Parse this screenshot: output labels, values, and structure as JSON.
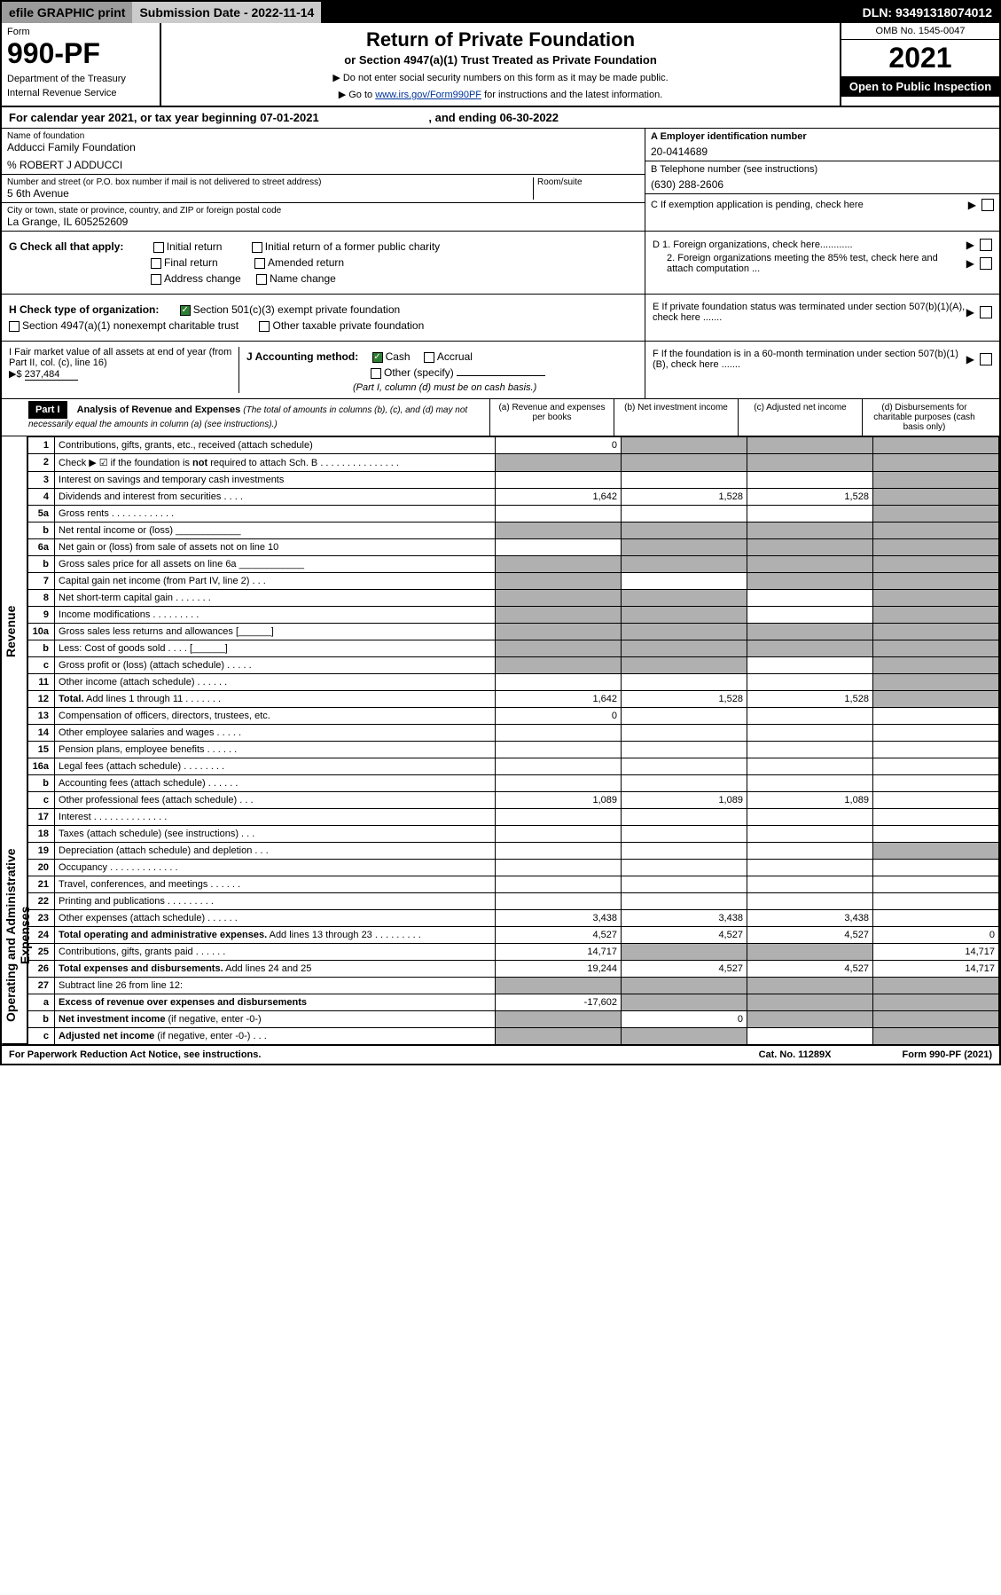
{
  "topbar": {
    "efile": "efile GRAPHIC print",
    "subdate_label": "Submission Date - 2022-11-14",
    "dln": "DLN: 93491318074012"
  },
  "header": {
    "form_label": "Form",
    "form_no": "990-PF",
    "dept": "Department of the Treasury",
    "irs": "Internal Revenue Service",
    "title": "Return of Private Foundation",
    "subtitle": "or Section 4947(a)(1) Trust Treated as Private Foundation",
    "note1": "▶ Do not enter social security numbers on this form as it may be made public.",
    "note2_pre": "▶ Go to ",
    "note2_link": "www.irs.gov/Form990PF",
    "note2_post": " for instructions and the latest information.",
    "omb": "OMB No. 1545-0047",
    "year": "2021",
    "open": "Open to Public Inspection"
  },
  "calyear": {
    "text": "For calendar year 2021, or tax year beginning 07-01-2021",
    "ending": ", and ending 06-30-2022"
  },
  "foundation": {
    "name_label": "Name of foundation",
    "name": "Adducci Family Foundation",
    "care_of": "% ROBERT J ADDUCCI",
    "addr_label": "Number and street (or P.O. box number if mail is not delivered to street address)",
    "room_label": "Room/suite",
    "addr": "5 6th Avenue",
    "city_label": "City or town, state or province, country, and ZIP or foreign postal code",
    "city": "La Grange, IL  605252609"
  },
  "right_info": {
    "a_label": "A Employer identification number",
    "a_val": "20-0414689",
    "b_label": "B Telephone number (see instructions)",
    "b_val": "(630) 288-2606",
    "c_label": "C If exemption application is pending, check here",
    "d1": "D 1. Foreign organizations, check here............",
    "d2": "2. Foreign organizations meeting the 85% test, check here and attach computation ...",
    "e": "E  If private foundation status was terminated under section 507(b)(1)(A), check here .......",
    "f": "F  If the foundation is in a 60-month termination under section 507(b)(1)(B), check here ......."
  },
  "checks_g": {
    "label": "G Check all that apply:",
    "opts": [
      "Initial return",
      "Initial return of a former public charity",
      "Final return",
      "Amended return",
      "Address change",
      "Name change"
    ]
  },
  "checks_h": {
    "label": "H Check type of organization:",
    "opt1": "Section 501(c)(3) exempt private foundation",
    "opt2": "Section 4947(a)(1) nonexempt charitable trust",
    "opt3": "Other taxable private foundation"
  },
  "section_i": {
    "label": "I Fair market value of all assets at end of year (from Part II, col. (c), line 16)",
    "arrow": "▶$",
    "value": "237,484"
  },
  "section_j": {
    "label": "J Accounting method:",
    "cash": "Cash",
    "accrual": "Accrual",
    "other": "Other (specify)",
    "note": "(Part I, column (d) must be on cash basis.)"
  },
  "part1": {
    "title": "Part I",
    "heading": "Analysis of Revenue and Expenses",
    "heading_note": "(The total of amounts in columns (b), (c), and (d) may not necessarily equal the amounts in column (a) (see instructions).)",
    "col_a": "(a)   Revenue and expenses per books",
    "col_b": "(b)   Net investment income",
    "col_c": "(c)   Adjusted net income",
    "col_d": "(d)   Disbursements for charitable purposes (cash basis only)"
  },
  "side": {
    "revenue": "Revenue",
    "expenses": "Operating and Administrative Expenses"
  },
  "rows": [
    {
      "n": "1",
      "desc": "Contributions, gifts, grants, etc., received (attach schedule)",
      "a": "0",
      "b_shade": true,
      "c_shade": true,
      "d_shade": true
    },
    {
      "n": "2",
      "desc": "Check ▶ ☑ if the foundation is <b>not</b> required to attach Sch. B   .   .   .   .   .   .   .   .   .   .   .   .   .   .   .",
      "a_shade": true,
      "b_shade": true,
      "c_shade": true,
      "d_shade": true
    },
    {
      "n": "3",
      "desc": "Interest on savings and temporary cash investments",
      "d_shade": true
    },
    {
      "n": "4",
      "desc": "Dividends and interest from securities   .   .   .   .",
      "a": "1,642",
      "b": "1,528",
      "c": "1,528",
      "d_shade": true
    },
    {
      "n": "5a",
      "desc": "Gross rents   .   .   .   .   .   .   .   .   .   .   .   .",
      "d_shade": true
    },
    {
      "n": "b",
      "desc": "Net rental income or (loss)  ____________",
      "a_shade": true,
      "b_shade": true,
      "c_shade": true,
      "d_shade": true
    },
    {
      "n": "6a",
      "desc": "Net gain or (loss) from sale of assets not on line 10",
      "b_shade": true,
      "c_shade": true,
      "d_shade": true
    },
    {
      "n": "b",
      "desc": "Gross sales price for all assets on line 6a ____________",
      "a_shade": true,
      "b_shade": true,
      "c_shade": true,
      "d_shade": true
    },
    {
      "n": "7",
      "desc": "Capital gain net income (from Part IV, line 2)   .   .   .",
      "a_shade": true,
      "c_shade": true,
      "d_shade": true
    },
    {
      "n": "8",
      "desc": "Net short-term capital gain   .   .   .   .   .   .   .",
      "a_shade": true,
      "b_shade": true,
      "d_shade": true
    },
    {
      "n": "9",
      "desc": "Income modifications   .   .   .   .   .   .   .   .   .",
      "a_shade": true,
      "b_shade": true,
      "d_shade": true
    },
    {
      "n": "10a",
      "desc": "Gross sales less returns and allowances  [______]",
      "a_shade": true,
      "b_shade": true,
      "c_shade": true,
      "d_shade": true
    },
    {
      "n": "b",
      "desc": "Less: Cost of goods sold   .   .   .   .   [______]",
      "a_shade": true,
      "b_shade": true,
      "c_shade": true,
      "d_shade": true
    },
    {
      "n": "c",
      "desc": "Gross profit or (loss) (attach schedule)   .   .   .   .   .",
      "a_shade": true,
      "b_shade": true,
      "d_shade": true
    },
    {
      "n": "11",
      "desc": "Other income (attach schedule)   .   .   .   .   .   .",
      "d_shade": true
    },
    {
      "n": "12",
      "desc": "<b>Total.</b> Add lines 1 through 11   .   .   .   .   .   .   .",
      "a": "1,642",
      "b": "1,528",
      "c": "1,528",
      "d_shade": true
    },
    {
      "n": "13",
      "desc": "Compensation of officers, directors, trustees, etc.",
      "a": "0"
    },
    {
      "n": "14",
      "desc": "Other employee salaries and wages   .   .   .   .   ."
    },
    {
      "n": "15",
      "desc": "Pension plans, employee benefits   .   .   .   .   .   ."
    },
    {
      "n": "16a",
      "desc": "Legal fees (attach schedule)   .   .   .   .   .   .   .   ."
    },
    {
      "n": "b",
      "desc": "Accounting fees (attach schedule)   .   .   .   .   .   ."
    },
    {
      "n": "c",
      "desc": "Other professional fees (attach schedule)   .   .   .",
      "a": "1,089",
      "b": "1,089",
      "c": "1,089"
    },
    {
      "n": "17",
      "desc": "Interest   .   .   .   .   .   .   .   .   .   .   .   .   .   ."
    },
    {
      "n": "18",
      "desc": "Taxes (attach schedule) (see instructions)   .   .   ."
    },
    {
      "n": "19",
      "desc": "Depreciation (attach schedule) and depletion   .   .   .",
      "d_shade": true
    },
    {
      "n": "20",
      "desc": "Occupancy   .   .   .   .   .   .   .   .   .   .   .   .   ."
    },
    {
      "n": "21",
      "desc": "Travel, conferences, and meetings   .   .   .   .   .   ."
    },
    {
      "n": "22",
      "desc": "Printing and publications   .   .   .   .   .   .   .   .   ."
    },
    {
      "n": "23",
      "desc": "Other expenses (attach schedule)   .   .   .   .   .   .",
      "a": "3,438",
      "b": "3,438",
      "c": "3,438"
    },
    {
      "n": "24",
      "desc": "<b>Total operating and administrative expenses.</b> Add lines 13 through 23   .   .   .   .   .   .   .   .   .",
      "a": "4,527",
      "b": "4,527",
      "c": "4,527",
      "d": "0"
    },
    {
      "n": "25",
      "desc": "Contributions, gifts, grants paid   .   .   .   .   .   .",
      "a": "14,717",
      "b_shade": true,
      "c_shade": true,
      "d": "14,717"
    },
    {
      "n": "26",
      "desc": "<b>Total expenses and disbursements.</b> Add lines 24 and 25",
      "a": "19,244",
      "b": "4,527",
      "c": "4,527",
      "d": "14,717"
    },
    {
      "n": "27",
      "desc": "Subtract line 26 from line 12:",
      "a_shade": true,
      "b_shade": true,
      "c_shade": true,
      "d_shade": true
    },
    {
      "n": "a",
      "desc": "<b>Excess of revenue over expenses and disbursements</b>",
      "a": "-17,602",
      "b_shade": true,
      "c_shade": true,
      "d_shade": true
    },
    {
      "n": "b",
      "desc": "<b>Net investment income</b> (if negative, enter -0-)",
      "a_shade": true,
      "b": "0",
      "c_shade": true,
      "d_shade": true
    },
    {
      "n": "c",
      "desc": "<b>Adjusted net income</b> (if negative, enter -0-)   .   .   .",
      "a_shade": true,
      "b_shade": true,
      "d_shade": true
    }
  ],
  "footer": {
    "left": "For Paperwork Reduction Act Notice, see instructions.",
    "mid": "Cat. No. 11289X",
    "right": "Form 990-PF (2021)"
  }
}
